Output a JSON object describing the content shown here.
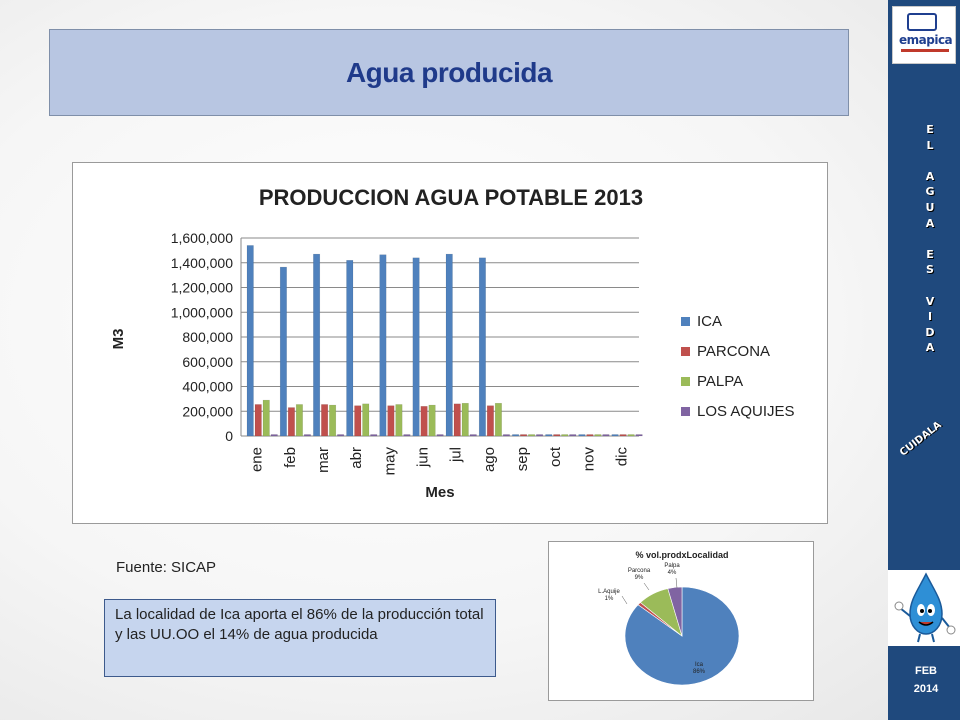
{
  "slide": {
    "title": "Agua producida",
    "source": "Fuente: SICAP",
    "note": "La localidad de  Ica   aporta   el 86% de la producción total y las UU.OO el 14% de agua producida"
  },
  "sidebar": {
    "logo_text": "emapica",
    "slogan_letters": [
      "E",
      "L",
      "",
      "A",
      "G",
      "U",
      "A",
      "",
      "E",
      "S",
      "",
      "V",
      "I",
      "D",
      "A"
    ],
    "cuidala": "CUIDALA",
    "date_month": "FEB",
    "date_year": "2014",
    "colors": {
      "background": "#1f497d"
    }
  },
  "chart_data": [
    {
      "type": "bar",
      "title": "PRODUCCION AGUA POTABLE 2013",
      "xlabel": "Mes",
      "ylabel": "M3",
      "categories": [
        "ene",
        "feb",
        "mar",
        "abr",
        "may",
        "jun",
        "jul",
        "ago",
        "sep",
        "oct",
        "nov",
        "dic"
      ],
      "series": [
        {
          "name": "ICA",
          "color": "#4f81bd",
          "values": [
            1540000,
            1365000,
            1470000,
            1420000,
            1465000,
            1440000,
            1470000,
            1440000,
            0,
            0,
            0,
            0
          ]
        },
        {
          "name": "PARCONA",
          "color": "#c0504d",
          "values": [
            255000,
            230000,
            255000,
            245000,
            245000,
            240000,
            260000,
            245000,
            0,
            0,
            0,
            0
          ]
        },
        {
          "name": "PALPA",
          "color": "#9bbb59",
          "values": [
            290000,
            255000,
            250000,
            260000,
            255000,
            250000,
            265000,
            265000,
            0,
            0,
            0,
            0
          ]
        },
        {
          "name": "LOS AQUIJES",
          "color": "#8064a2",
          "values": [
            0,
            0,
            0,
            0,
            0,
            0,
            0,
            0,
            0,
            0,
            0,
            0
          ]
        }
      ],
      "ylim": [
        0,
        1600000
      ],
      "yticks": [
        "0",
        "200,000",
        "400,000",
        "600,000",
        "800,000",
        "1,000,000",
        "1,200,000",
        "1,400,000",
        "1,600,000"
      ],
      "grid": true,
      "legend": "right"
    },
    {
      "type": "pie",
      "title": "% vol.prodxLocalidad",
      "slices": [
        {
          "label": "Ica",
          "pct_label": "86%",
          "value": 86,
          "color": "#4f81bd"
        },
        {
          "label": "L.Aquije",
          "pct_label": "1%",
          "value": 1,
          "color": "#c0504d"
        },
        {
          "label": "Parcona",
          "pct_label": "9%",
          "value": 9,
          "color": "#9bbb59"
        },
        {
          "label": "Palpa",
          "pct_label": "4%",
          "value": 4,
          "color": "#8064a2"
        }
      ]
    }
  ]
}
